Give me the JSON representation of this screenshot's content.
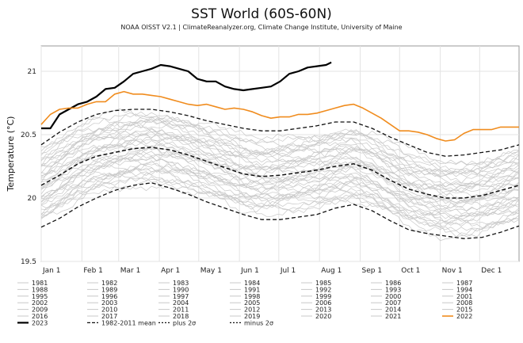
{
  "chart_data": {
    "type": "line",
    "title": "SST World (60S-60N)",
    "subtitle": "NOAA OISST V2.1 | ClimateReanalyzer.org, Climate Change Institute, University of Maine",
    "ylabel": "Temperature (°C)",
    "xlabel": "",
    "xlim": [
      1,
      365
    ],
    "ylim": [
      19.5,
      21.2
    ],
    "grid": true,
    "x_ticks": [
      {
        "label": "Jan 1",
        "day": 1
      },
      {
        "label": "Feb 1",
        "day": 32
      },
      {
        "label": "Mar 1",
        "day": 60
      },
      {
        "label": "Apr 1",
        "day": 91
      },
      {
        "label": "May 1",
        "day": 121
      },
      {
        "label": "Jun 1",
        "day": 152
      },
      {
        "label": "Jul 1",
        "day": 182
      },
      {
        "label": "Aug 1",
        "day": 213
      },
      {
        "label": "Sep 1",
        "day": 244
      },
      {
        "label": "Oct 1",
        "day": 274
      },
      {
        "label": "Nov 1",
        "day": 305
      },
      {
        "label": "Dec 1",
        "day": 335
      }
    ],
    "y_ticks": [
      {
        "label": "19.5",
        "value": 19.5
      },
      {
        "label": "20",
        "value": 20.0
      },
      {
        "label": "20.5",
        "value": 20.5
      },
      {
        "label": "21",
        "value": 21.0
      }
    ],
    "legend_position": "bottom",
    "background_years": [
      "1981",
      "1982",
      "1983",
      "1984",
      "1985",
      "1986",
      "1987",
      "1988",
      "1989",
      "1990",
      "1991",
      "1992",
      "1993",
      "1994",
      "1995",
      "1996",
      "1997",
      "1998",
      "1999",
      "2000",
      "2001",
      "2002",
      "2003",
      "2004",
      "2005",
      "2006",
      "2007",
      "2008",
      "2009",
      "2010",
      "2011",
      "2012",
      "2013",
      "2014",
      "2015",
      "2016",
      "2017",
      "2018",
      "2019",
      "2020",
      "2021"
    ],
    "series": [
      {
        "name": "2023",
        "color": "#000000",
        "style": "solid",
        "width": 2.2,
        "x": [
          1,
          8,
          15,
          22,
          29,
          36,
          43,
          50,
          57,
          64,
          71,
          78,
          85,
          92,
          99,
          106,
          113,
          120,
          127,
          134,
          141,
          148,
          155,
          162,
          169,
          176,
          183,
          190,
          197,
          204,
          211,
          218,
          222
        ],
        "y": [
          20.55,
          20.55,
          20.66,
          20.7,
          20.74,
          20.76,
          20.8,
          20.86,
          20.87,
          20.92,
          20.98,
          21.0,
          21.02,
          21.05,
          21.04,
          21.02,
          21.0,
          20.94,
          20.92,
          20.92,
          20.88,
          20.86,
          20.85,
          20.86,
          20.87,
          20.88,
          20.92,
          20.98,
          21.0,
          21.03,
          21.04,
          21.05,
          21.07
        ]
      },
      {
        "name": "2022",
        "color": "#f08c1e",
        "style": "solid",
        "width": 1.6,
        "x": [
          1,
          8,
          15,
          22,
          29,
          36,
          43,
          50,
          57,
          64,
          71,
          78,
          85,
          92,
          99,
          106,
          113,
          120,
          127,
          134,
          141,
          148,
          155,
          162,
          169,
          176,
          183,
          190,
          197,
          204,
          211,
          218,
          225,
          232,
          239,
          246,
          253,
          260,
          267,
          274,
          281,
          288,
          295,
          302,
          309,
          316,
          323,
          330,
          337,
          344,
          351,
          358,
          365
        ],
        "y": [
          20.58,
          20.66,
          20.7,
          20.71,
          20.71,
          20.74,
          20.76,
          20.76,
          20.82,
          20.84,
          20.82,
          20.82,
          20.81,
          20.8,
          20.78,
          20.76,
          20.74,
          20.73,
          20.74,
          20.72,
          20.7,
          20.71,
          20.7,
          20.68,
          20.65,
          20.63,
          20.64,
          20.64,
          20.66,
          20.66,
          20.67,
          20.69,
          20.71,
          20.73,
          20.74,
          20.71,
          20.67,
          20.63,
          20.58,
          20.53,
          20.53,
          20.52,
          20.5,
          20.47,
          20.45,
          20.46,
          20.51,
          20.54,
          20.54,
          20.54,
          20.56,
          20.56,
          20.56
        ]
      },
      {
        "name": "1982-2011 mean",
        "color": "#111111",
        "style": "dash",
        "width": 1.5,
        "x": [
          1,
          15,
          29,
          43,
          57,
          71,
          85,
          99,
          113,
          127,
          141,
          155,
          169,
          183,
          197,
          211,
          225,
          239,
          253,
          267,
          281,
          295,
          309,
          323,
          337,
          351,
          365
        ],
        "y": [
          20.1,
          20.18,
          20.27,
          20.33,
          20.36,
          20.39,
          20.4,
          20.38,
          20.34,
          20.29,
          20.24,
          20.19,
          20.17,
          20.18,
          20.2,
          20.22,
          20.25,
          20.27,
          20.22,
          20.14,
          20.07,
          20.03,
          20.0,
          20.0,
          20.02,
          20.06,
          20.1
        ]
      },
      {
        "name": "plus 2σ",
        "color": "#111111",
        "style": "dash",
        "width": 1.3,
        "x": [
          1,
          15,
          29,
          43,
          57,
          71,
          85,
          99,
          113,
          127,
          141,
          155,
          169,
          183,
          197,
          211,
          225,
          239,
          253,
          267,
          281,
          295,
          309,
          323,
          337,
          351,
          365
        ],
        "y": [
          20.42,
          20.52,
          20.6,
          20.66,
          20.69,
          20.7,
          20.7,
          20.68,
          20.65,
          20.61,
          20.58,
          20.55,
          20.53,
          20.53,
          20.55,
          20.57,
          20.6,
          20.6,
          20.55,
          20.48,
          20.42,
          20.36,
          20.33,
          20.34,
          20.36,
          20.38,
          20.42
        ]
      },
      {
        "name": "minus 2σ",
        "color": "#111111",
        "style": "dash",
        "width": 1.3,
        "x": [
          1,
          15,
          29,
          43,
          57,
          71,
          85,
          99,
          113,
          127,
          141,
          155,
          169,
          183,
          197,
          211,
          225,
          239,
          253,
          267,
          281,
          295,
          309,
          323,
          337,
          351,
          365
        ],
        "y": [
          19.77,
          19.84,
          19.93,
          20.0,
          20.06,
          20.1,
          20.12,
          20.08,
          20.03,
          19.97,
          19.92,
          19.87,
          19.83,
          19.83,
          19.85,
          19.87,
          19.92,
          19.95,
          19.9,
          19.82,
          19.75,
          19.72,
          19.7,
          19.68,
          19.69,
          19.73,
          19.78
        ]
      }
    ],
    "legend_items": [
      {
        "label": "1981",
        "kind": "year"
      },
      {
        "label": "1982",
        "kind": "year"
      },
      {
        "label": "1983",
        "kind": "year"
      },
      {
        "label": "1984",
        "kind": "year"
      },
      {
        "label": "1985",
        "kind": "year"
      },
      {
        "label": "1986",
        "kind": "year"
      },
      {
        "label": "1987",
        "kind": "year"
      },
      {
        "label": "1988",
        "kind": "year"
      },
      {
        "label": "1989",
        "kind": "year"
      },
      {
        "label": "1990",
        "kind": "year"
      },
      {
        "label": "1991",
        "kind": "year"
      },
      {
        "label": "1992",
        "kind": "year"
      },
      {
        "label": "1993",
        "kind": "year"
      },
      {
        "label": "1994",
        "kind": "year"
      },
      {
        "label": "1995",
        "kind": "year"
      },
      {
        "label": "1996",
        "kind": "year"
      },
      {
        "label": "1997",
        "kind": "year"
      },
      {
        "label": "1998",
        "kind": "year"
      },
      {
        "label": "1999",
        "kind": "year"
      },
      {
        "label": "2000",
        "kind": "year"
      },
      {
        "label": "2001",
        "kind": "year"
      },
      {
        "label": "2002",
        "kind": "year"
      },
      {
        "label": "2003",
        "kind": "year"
      },
      {
        "label": "2004",
        "kind": "year"
      },
      {
        "label": "2005",
        "kind": "year"
      },
      {
        "label": "2006",
        "kind": "year"
      },
      {
        "label": "2007",
        "kind": "year"
      },
      {
        "label": "2008",
        "kind": "year"
      },
      {
        "label": "2009",
        "kind": "year"
      },
      {
        "label": "2010",
        "kind": "year"
      },
      {
        "label": "2011",
        "kind": "year"
      },
      {
        "label": "2012",
        "kind": "year"
      },
      {
        "label": "2013",
        "kind": "year"
      },
      {
        "label": "2014",
        "kind": "year"
      },
      {
        "label": "2015",
        "kind": "year"
      },
      {
        "label": "2016",
        "kind": "year"
      },
      {
        "label": "2017",
        "kind": "year"
      },
      {
        "label": "2018",
        "kind": "year"
      },
      {
        "label": "2019",
        "kind": "year"
      },
      {
        "label": "2020",
        "kind": "year"
      },
      {
        "label": "2021",
        "kind": "year"
      },
      {
        "label": "2022",
        "kind": "orange"
      },
      {
        "label": "2023",
        "kind": "bold"
      },
      {
        "label": "1982-2011 mean",
        "kind": "mean"
      },
      {
        "label": "plus 2σ",
        "kind": "sigma"
      },
      {
        "label": "minus 2σ",
        "kind": "sigma"
      }
    ],
    "colors": {
      "background_years": "#c8c8c8",
      "grid": "#e3e3e3",
      "axis": "#999999"
    }
  }
}
